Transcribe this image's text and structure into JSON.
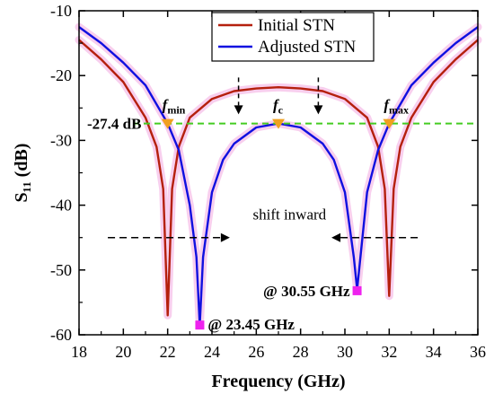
{
  "chart_data": {
    "type": "line",
    "xlabel": "Frequency (GHz)",
    "ylabel": "S₁₁ (dB)",
    "xlim": [
      18,
      36
    ],
    "ylim": [
      -60,
      -10
    ],
    "x_ticks": [
      "18",
      "20",
      "22",
      "24",
      "26",
      "28",
      "30",
      "32",
      "34",
      "36"
    ],
    "y_ticks": [
      "-10",
      "-20",
      "-30",
      "-40",
      "-50",
      "-60"
    ],
    "series": [
      {
        "name": "Initial STN",
        "color": "#b5200d",
        "x": [
          18,
          19,
          20,
          21,
          21.5,
          21.8,
          22.0,
          22.2,
          22.5,
          23,
          24,
          25,
          26,
          27,
          28,
          29,
          30,
          31,
          31.5,
          31.8,
          32.0,
          32.2,
          32.5,
          33,
          34,
          35,
          36
        ],
        "y": [
          -14.5,
          -17.5,
          -21.0,
          -26.5,
          -31.0,
          -37.5,
          -57.0,
          -37.5,
          -31.0,
          -26.5,
          -23.6,
          -22.4,
          -22.0,
          -21.8,
          -22.0,
          -22.4,
          -23.6,
          -26.5,
          -31.0,
          -37.5,
          -54.0,
          -37.5,
          -31.0,
          -26.5,
          -21.0,
          -17.5,
          -14.5
        ]
      },
      {
        "name": "Adjusted STN",
        "color": "#1010e0",
        "x": [
          18,
          19,
          20,
          21,
          22,
          22.5,
          23.0,
          23.3,
          23.45,
          23.6,
          24.0,
          24.5,
          25,
          26,
          27,
          28,
          29,
          29.5,
          30.0,
          30.4,
          30.55,
          30.7,
          31.0,
          31.5,
          32,
          33,
          34,
          35,
          36
        ],
        "y": [
          -12.5,
          -15.0,
          -18.0,
          -21.5,
          -27.4,
          -31.5,
          -40.0,
          -48.0,
          -58.5,
          -48.0,
          -38.0,
          -33.0,
          -30.5,
          -28.0,
          -27.4,
          -28.0,
          -30.5,
          -33.0,
          -38.0,
          -48.0,
          -53.0,
          -48.0,
          -38.0,
          -31.5,
          -27.4,
          -21.5,
          -18.0,
          -15.0,
          -12.5
        ]
      }
    ],
    "reference_line": {
      "label": "-27.4 dB",
      "y": -27.4,
      "color": "#44cc22",
      "style": "dashed"
    },
    "markers": [
      {
        "label": "f",
        "sub": "min",
        "x": 22,
        "y": -27.4,
        "color": "#f0a020"
      },
      {
        "label": "f",
        "sub": "c",
        "x": 27,
        "y": -27.4,
        "color": "#f0a020"
      },
      {
        "label": "f",
        "sub": "max",
        "x": 32,
        "y": -27.4,
        "color": "#f0a020"
      }
    ],
    "point_annotations": [
      {
        "text": "@ 23.45 GHz",
        "x": 23.45,
        "y": -58.5,
        "color": "#ee22ee"
      },
      {
        "text": "@ 30.55 GHz",
        "x": 30.55,
        "y": -53.2,
        "color": "#ee22ee"
      }
    ],
    "text_annotation": "shift inward",
    "legend_placement": "top-center",
    "grid": false
  }
}
